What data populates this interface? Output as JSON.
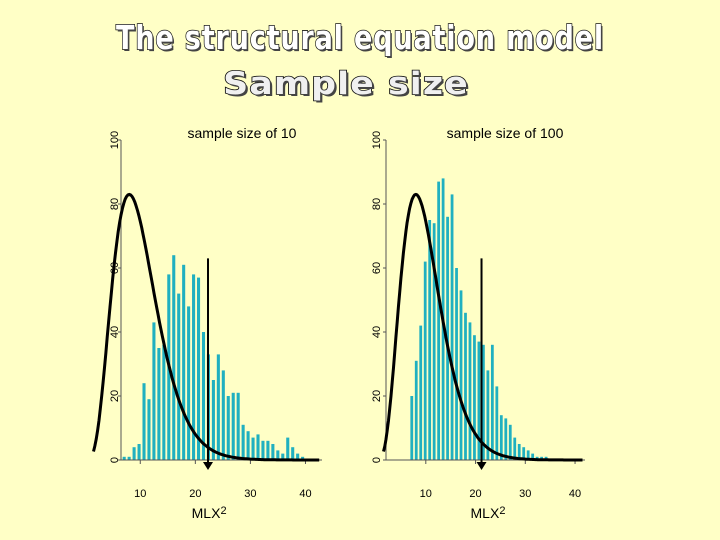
{
  "slide": {
    "title": "The structural equation model",
    "subtitle": "Sample size"
  },
  "chart_data": [
    {
      "type": "bar",
      "title": "sample size of 10",
      "xlabel": "MLX2",
      "x_ticks": [
        "10",
        "20",
        "30",
        "40"
      ],
      "y_ticks": [
        "0",
        "20",
        "40",
        "60",
        "80",
        "100"
      ],
      "ylim": [
        0,
        100
      ],
      "xlim": [
        6.5,
        43
      ],
      "bar_color": "#20b0c0",
      "curve_color": "#000000",
      "bins_start": 6.8,
      "bin_width": 0.9,
      "values": [
        1,
        1,
        4,
        5,
        24,
        19,
        43,
        35,
        36,
        58,
        64,
        52,
        61,
        48,
        58,
        57,
        40,
        33,
        25,
        33,
        28,
        20,
        21,
        21,
        11,
        9,
        7,
        8,
        6,
        6,
        5,
        3,
        2,
        7,
        4,
        2,
        1
      ],
      "curve": {
        "df": 10
      },
      "marker_x": 22.3
    },
    {
      "type": "bar",
      "title": "sample size of 100",
      "xlabel": "MLX2",
      "x_ticks": [
        "10",
        "20",
        "30",
        "40"
      ],
      "y_ticks": [
        "0",
        "20",
        "40",
        "60",
        "80",
        "100"
      ],
      "ylim": [
        0,
        100
      ],
      "xlim": [
        2,
        42
      ],
      "bar_color": "#20b0c0",
      "curve_color": "#000000",
      "bins_start": 6,
      "bin_width": 0.9,
      "values": [
        0,
        20,
        31,
        42,
        62,
        75,
        74,
        87,
        88,
        76,
        83,
        60,
        53,
        46,
        43,
        39,
        37,
        36,
        28,
        36,
        23,
        14,
        13,
        11,
        7,
        5,
        4,
        3,
        2,
        1,
        1,
        1
      ],
      "curve": {
        "df": 10
      },
      "marker_x": 21.2
    }
  ]
}
